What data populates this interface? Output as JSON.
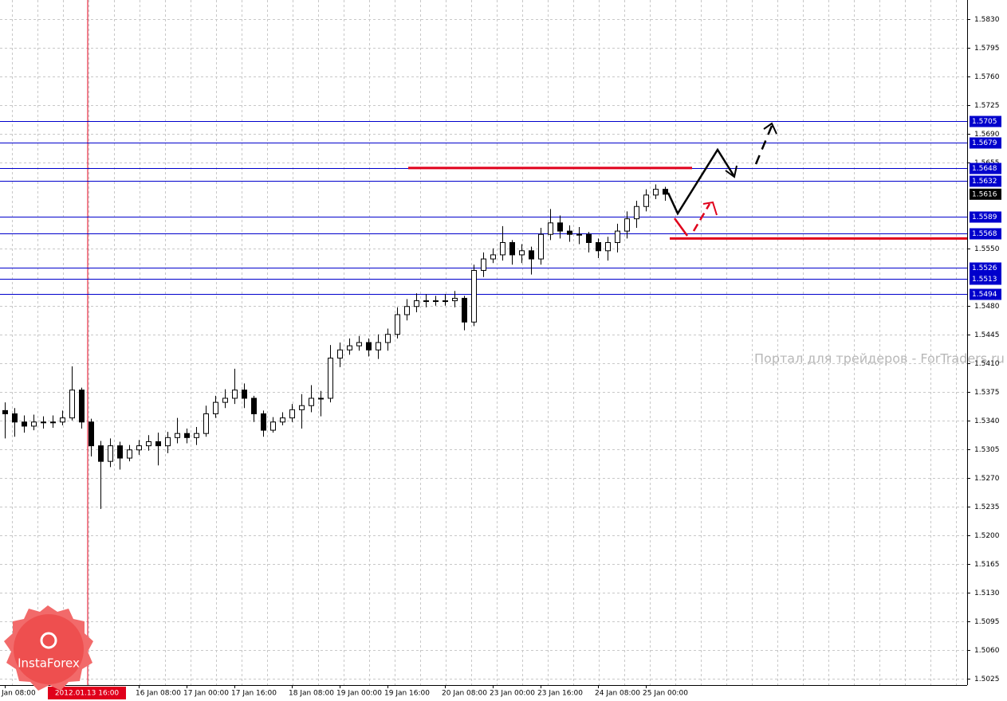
{
  "chart_data": {
    "type": "candlestick",
    "categories": [
      "Jan 08:00",
      null,
      null,
      null,
      null,
      null,
      null,
      null,
      null,
      null,
      null,
      null,
      null,
      null,
      "16 Jan 08:00",
      null,
      null,
      null,
      null,
      "17 Jan 00:00",
      null,
      null,
      null,
      null,
      "17 Jan 16:00",
      null,
      null,
      null,
      null,
      null,
      "18 Jan 08:00",
      null,
      null,
      null,
      null,
      "19 Jan 00:00",
      null,
      null,
      null,
      null,
      "19 Jan 16:00",
      null,
      null,
      null,
      null,
      null,
      "20 Jan 08:00",
      null,
      null,
      null,
      null,
      "23 Jan 00:00",
      null,
      null,
      null,
      null,
      "23 Jan 16:00",
      null,
      null,
      null,
      null,
      null,
      "24 Jan 08:00",
      null,
      null,
      null,
      null,
      "25 Jan 00:00",
      null,
      null
    ],
    "open": [
      1.5352,
      1.5348,
      1.5338,
      1.5333,
      1.5338,
      1.5338,
      1.5338,
      1.5343,
      1.5377,
      1.5338,
      1.5309,
      1.529,
      1.5309,
      1.5294,
      1.5304,
      1.5309,
      1.5314,
      1.5309,
      1.5319,
      1.5324,
      1.5319,
      1.5324,
      1.5348,
      1.5362,
      1.5367,
      1.5377,
      1.5367,
      1.5348,
      1.5328,
      1.5338,
      1.5343,
      1.5353,
      1.5358,
      1.5367,
      1.5367,
      1.5416,
      1.5426,
      1.5431,
      1.5435,
      1.5426,
      1.5435,
      1.5445,
      1.5469,
      1.5479,
      1.5486,
      1.5486,
      1.5486,
      1.5486,
      1.5489,
      1.546,
      1.5523,
      1.5537,
      1.5542,
      1.5557,
      1.5542,
      1.5547,
      1.5537,
      1.5567,
      1.5581,
      1.5571,
      1.5567,
      1.5567,
      1.5557,
      1.5547,
      1.5557,
      1.5571,
      1.5586,
      1.5601,
      1.5615,
      1.5622
    ],
    "high": [
      1.5362,
      1.5355,
      1.5346,
      1.5347,
      1.5345,
      1.5346,
      1.5352,
      1.5406,
      1.538,
      1.5342,
      1.5315,
      1.5318,
      1.5314,
      1.531,
      1.5316,
      1.5322,
      1.5325,
      1.5326,
      1.5343,
      1.533,
      1.5332,
      1.5358,
      1.537,
      1.5378,
      1.5403,
      1.5385,
      1.537,
      1.5352,
      1.5344,
      1.535,
      1.536,
      1.5372,
      1.5383,
      1.5376,
      1.5432,
      1.5435,
      1.544,
      1.5443,
      1.544,
      1.5445,
      1.5452,
      1.5478,
      1.5488,
      1.5495,
      1.5494,
      1.5492,
      1.5494,
      1.5498,
      1.5492,
      1.553,
      1.5545,
      1.555,
      1.5577,
      1.556,
      1.5555,
      1.5552,
      1.5575,
      1.5598,
      1.559,
      1.5578,
      1.5576,
      1.557,
      1.5562,
      1.5564,
      1.558,
      1.5595,
      1.5608,
      1.5622,
      1.5628,
      1.5625
    ],
    "low": [
      1.5318,
      1.532,
      1.5325,
      1.5328,
      1.533,
      1.5331,
      1.5334,
      1.534,
      1.533,
      1.5296,
      1.5232,
      1.5283,
      1.528,
      1.529,
      1.5298,
      1.5303,
      1.5285,
      1.53,
      1.5312,
      1.5312,
      1.531,
      1.532,
      1.5343,
      1.5355,
      1.536,
      1.5355,
      1.5338,
      1.532,
      1.5325,
      1.5334,
      1.5338,
      1.533,
      1.535,
      1.5345,
      1.5362,
      1.5405,
      1.542,
      1.5425,
      1.5418,
      1.5415,
      1.5425,
      1.544,
      1.5462,
      1.5472,
      1.5478,
      1.548,
      1.548,
      1.5478,
      1.545,
      1.5455,
      1.5515,
      1.5532,
      1.5535,
      1.553,
      1.5532,
      1.5518,
      1.553,
      1.556,
      1.5562,
      1.5558,
      1.5555,
      1.5545,
      1.5538,
      1.5535,
      1.5545,
      1.5562,
      1.5575,
      1.5595,
      1.561,
      1.5608
    ],
    "close": [
      1.5348,
      1.5338,
      1.5333,
      1.5338,
      1.5338,
      1.5338,
      1.5343,
      1.5377,
      1.5338,
      1.5309,
      1.529,
      1.5309,
      1.5294,
      1.5304,
      1.5309,
      1.5314,
      1.5309,
      1.5319,
      1.5324,
      1.5319,
      1.5324,
      1.5348,
      1.5362,
      1.5367,
      1.5377,
      1.5367,
      1.5348,
      1.5328,
      1.5338,
      1.5343,
      1.5353,
      1.5358,
      1.5367,
      1.5367,
      1.5416,
      1.5426,
      1.5431,
      1.5435,
      1.5426,
      1.5435,
      1.5445,
      1.5469,
      1.5479,
      1.5486,
      1.5486,
      1.5486,
      1.5486,
      1.5489,
      1.546,
      1.5523,
      1.5537,
      1.5542,
      1.5557,
      1.5542,
      1.5547,
      1.5537,
      1.5567,
      1.5581,
      1.5571,
      1.5567,
      1.5567,
      1.5557,
      1.5547,
      1.5557,
      1.5571,
      1.5586,
      1.5601,
      1.5615,
      1.5622,
      1.5616
    ],
    "color": "#000000",
    "ylim": [
      1.5017,
      1.5853
    ],
    "yticks": [
      1.5025,
      {
        "value": 1.506,
        "label": "1.5060"
      },
      1.5095,
      {
        "value": 1.513,
        "label": "1.5130"
      },
      1.5165,
      {
        "value": 1.52,
        "label": "1.5200"
      },
      1.5235,
      {
        "value": 1.527,
        "label": "1.5270"
      },
      1.5305,
      {
        "value": 1.534,
        "label": "1.5340"
      },
      1.5375,
      {
        "value": 1.541,
        "label": "1.5410"
      },
      1.5445,
      {
        "value": 1.548,
        "label": "1.5480"
      },
      {
        "value": 1.555,
        "label": "1.5550"
      },
      1.5655,
      {
        "value": 1.569,
        "label": "1.5690"
      },
      1.5725,
      {
        "value": 1.576,
        "label": "1.5760"
      },
      1.5795,
      {
        "value": 1.583,
        "label": "1.5830"
      }
    ],
    "grid": true,
    "levels": [
      1.5705,
      1.5679,
      1.5648,
      1.5632,
      1.5589,
      1.5568,
      1.5526,
      1.5513,
      1.5494
    ],
    "level_color": "#0000cc",
    "last_price": 1.5616,
    "red_lines": [
      1.5648,
      1.5562
    ],
    "red_color": "#e0001b",
    "marker_label": "2012.01.13 16:00",
    "watermark": "Портал для трейдеров - ForTraders.ru",
    "logo": "InstaForex"
  }
}
